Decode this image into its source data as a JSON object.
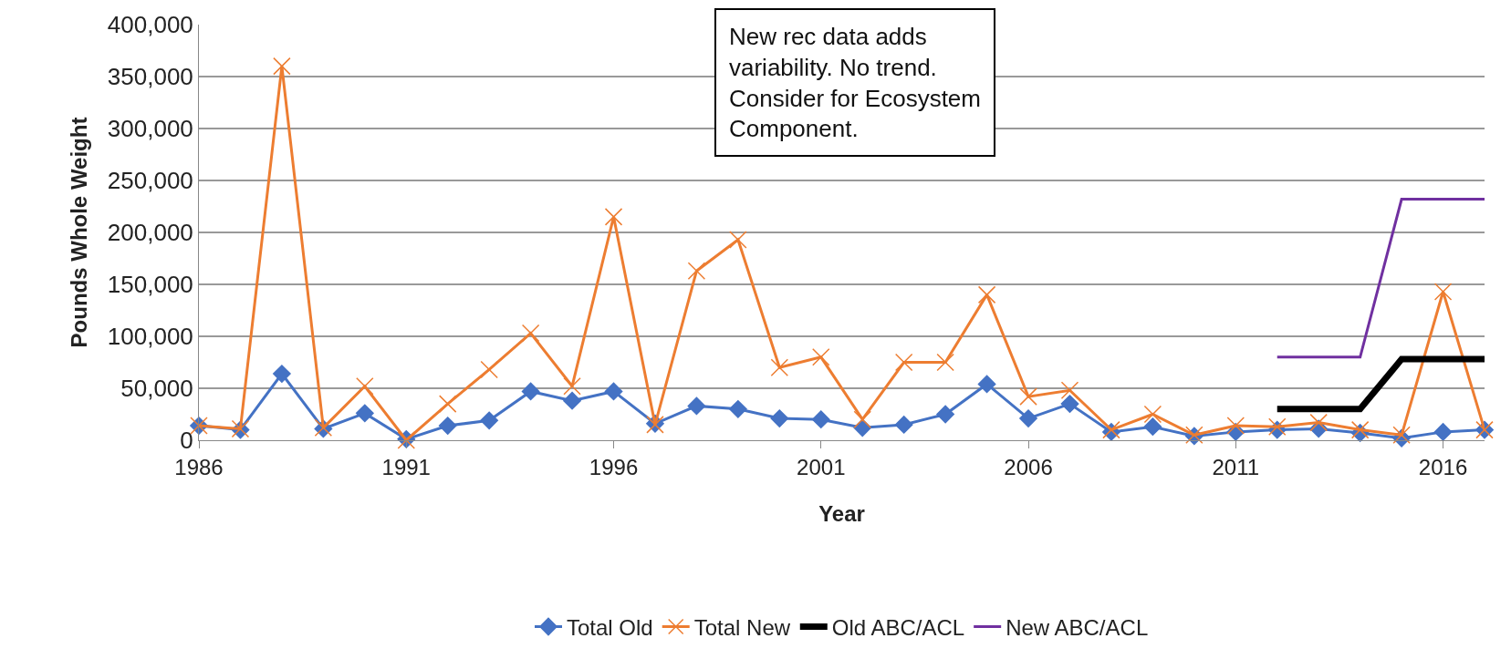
{
  "chart_data": {
    "type": "line",
    "xlabel": "Year",
    "ylabel": "Pounds Whole Weight",
    "categories": [
      "1986",
      null,
      null,
      null,
      null,
      "1991",
      null,
      null,
      null,
      null,
      "1996",
      null,
      null,
      null,
      null,
      "2001",
      null,
      null,
      null,
      null,
      "2006",
      null,
      null,
      null,
      null,
      "2011",
      null,
      null,
      null,
      null,
      "2016",
      null
    ],
    "series": [
      {
        "name": "Total Old",
        "color": "#4472c4",
        "marker": "diamond",
        "values": [
          14000,
          10000,
          64000,
          11000,
          26000,
          1000,
          14000,
          19000,
          47000,
          38000,
          47000,
          16000,
          33000,
          30000,
          21000,
          20000,
          12000,
          15000,
          25000,
          54000,
          21000,
          35000,
          8000,
          13000,
          4000,
          8000,
          10000,
          11000,
          7000,
          2000,
          8000,
          10000
        ]
      },
      {
        "name": "Total New",
        "color": "#ed7d31",
        "marker": "cross",
        "values": [
          14000,
          11000,
          360000,
          12000,
          52000,
          0,
          35000,
          68000,
          103000,
          52000,
          215000,
          15000,
          163000,
          193000,
          70000,
          80000,
          20000,
          75000,
          75000,
          140000,
          42000,
          48000,
          10000,
          25000,
          5000,
          14000,
          13000,
          17000,
          10000,
          5000,
          143000,
          10000
        ]
      },
      {
        "name": "Old ABC/ACL",
        "color": "#000000",
        "marker": "none",
        "values": [
          null,
          null,
          null,
          null,
          null,
          null,
          null,
          null,
          null,
          null,
          null,
          null,
          null,
          null,
          null,
          null,
          null,
          null,
          null,
          null,
          null,
          null,
          null,
          null,
          null,
          null,
          30000,
          30000,
          30000,
          78000,
          78000,
          78000
        ]
      },
      {
        "name": "New ABC/ACL",
        "color": "#7030a0",
        "marker": "none",
        "values": [
          null,
          null,
          null,
          null,
          null,
          null,
          null,
          null,
          null,
          null,
          null,
          null,
          null,
          null,
          null,
          null,
          null,
          null,
          null,
          null,
          null,
          null,
          null,
          null,
          null,
          null,
          80000,
          80000,
          80000,
          232000,
          232000,
          232000
        ]
      }
    ],
    "ylim": [
      0,
      400000
    ],
    "yticks": [
      {
        "value": 0,
        "label": "0"
      },
      {
        "value": 50000,
        "label": "50,000"
      },
      {
        "value": 100000,
        "label": "100,000"
      },
      {
        "value": 150000,
        "label": "150,000"
      },
      {
        "value": 200000,
        "label": "200,000"
      },
      {
        "value": 250000,
        "label": "250,000"
      },
      {
        "value": 300000,
        "label": "300,000"
      },
      {
        "value": 350000,
        "label": "350,000"
      },
      {
        "value": 400000,
        "label": "400,000"
      }
    ],
    "grid": "y",
    "legend": "bottom",
    "annotations": [
      "New rec data adds variability. No trend. Consider for Ecosystem Component."
    ]
  }
}
